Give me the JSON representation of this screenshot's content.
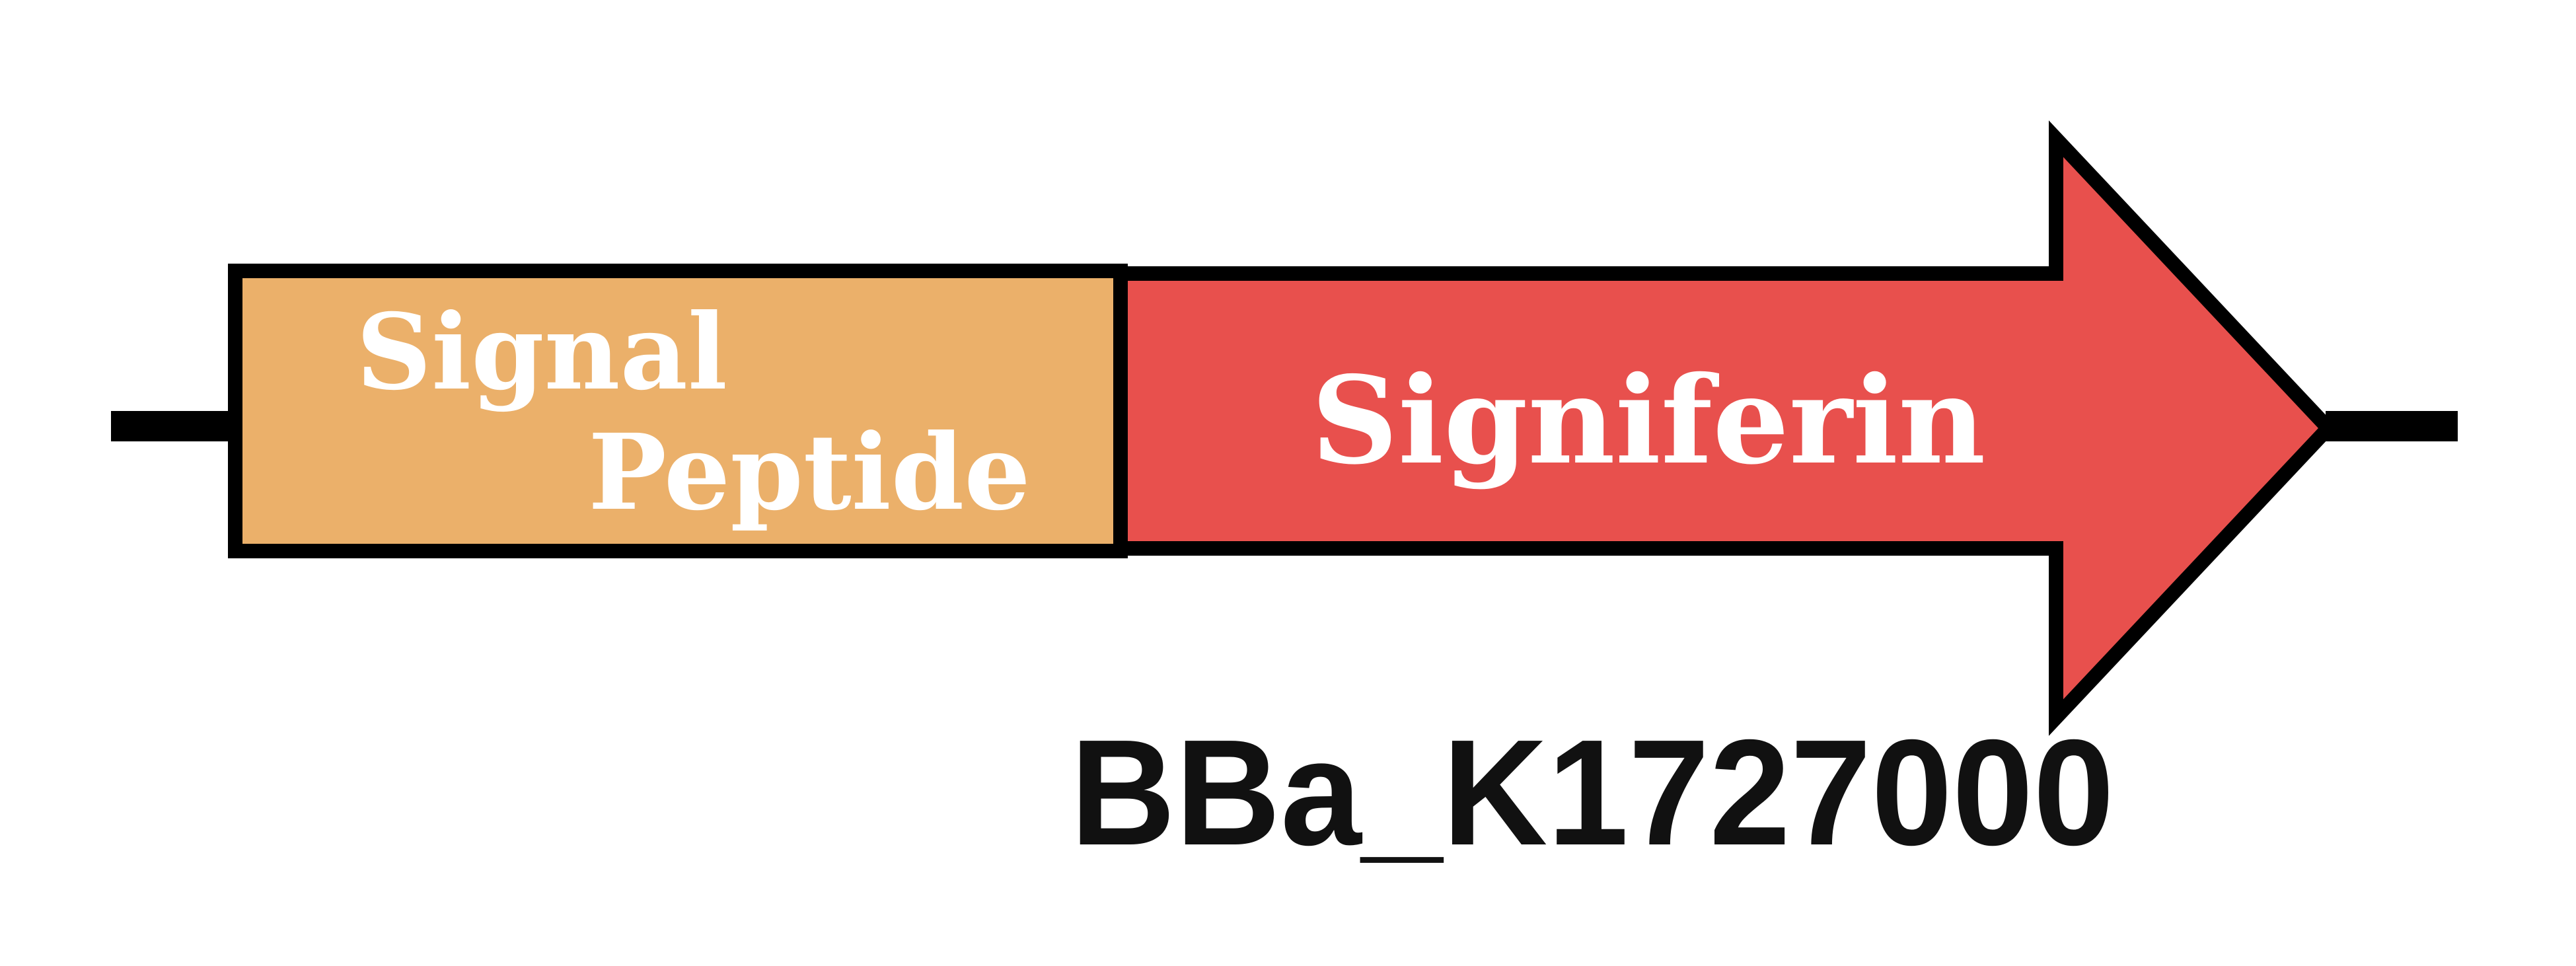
{
  "parts": {
    "signal_peptide": {
      "line1": "Signal",
      "line2": "Peptide",
      "fill": "#EBB06A"
    },
    "signiferin": {
      "label": "Signiferin",
      "fill": "#E8504D"
    }
  },
  "part_id": "BBa_K1727000",
  "colors": {
    "outline": "#000000",
    "label_text": "#FFFFFF",
    "id_text": "#111111",
    "background": "#FFFFFF"
  }
}
